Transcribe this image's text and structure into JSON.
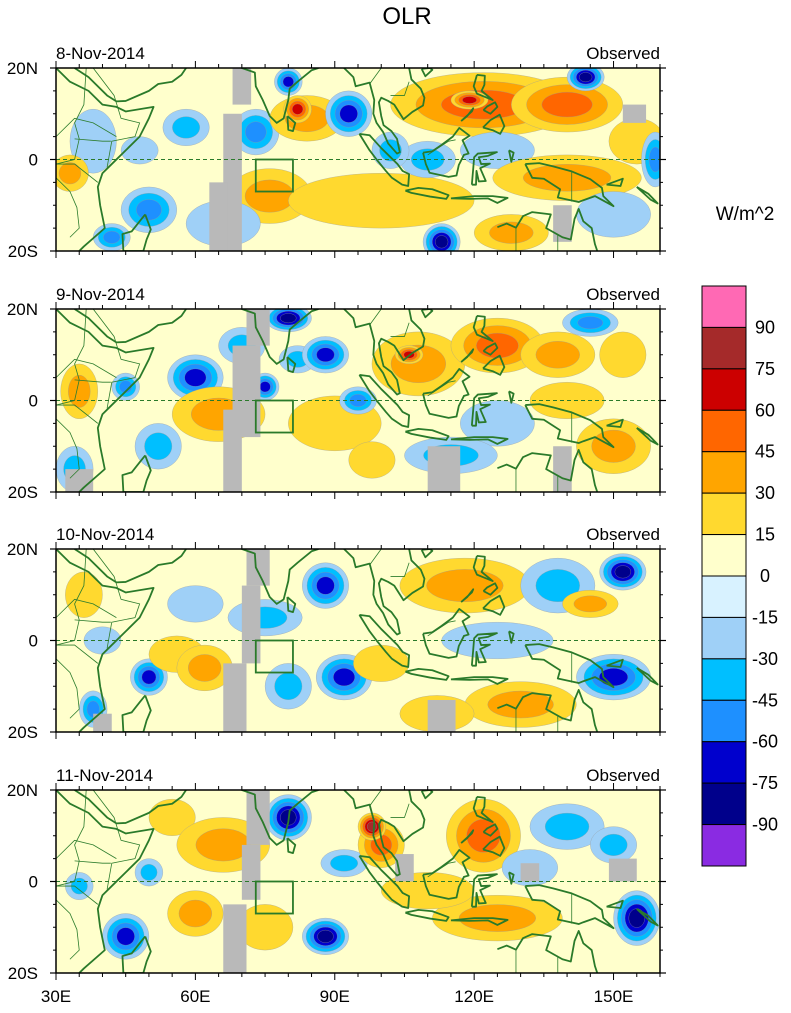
{
  "chart_data": {
    "type": "heatmap",
    "title": "OLR",
    "colorbar": {
      "unit_label": "W/m^2",
      "levels": [
        -90,
        -75,
        -60,
        -45,
        -30,
        -15,
        0,
        15,
        30,
        45,
        60,
        75,
        90
      ],
      "colors": [
        "#8a2be2",
        "#00008b",
        "#0000cd",
        "#1e90ff",
        "#00bfff",
        "#9fd0f7",
        "#d8f2ff",
        "#ffffcc",
        "#ffd92f",
        "#ffa500",
        "#ff6600",
        "#cc0000",
        "#a52a2a",
        "#ff69b4"
      ]
    },
    "x_axis": {
      "range": [
        30,
        160
      ],
      "ticks": [
        30,
        60,
        90,
        120,
        150
      ],
      "tick_labels": [
        "30E",
        "60E",
        "90E",
        "120E",
        "150E"
      ]
    },
    "y_axis": {
      "range": [
        -20,
        20
      ],
      "ticks": [
        20,
        0,
        -20
      ],
      "tick_labels": [
        "20N",
        "0",
        "20S"
      ]
    },
    "panels": [
      {
        "date": "8-Nov-2014",
        "label": "Observed",
        "anomalies": [
          {
            "lon": 38,
            "lat": 4,
            "rx": 5,
            "ry": 7,
            "v": -25
          },
          {
            "lon": 33,
            "lat": -3,
            "rx": 4,
            "ry": 4,
            "v": 35
          },
          {
            "lon": 50,
            "lat": -11,
            "rx": 6,
            "ry": 5,
            "v": -58
          },
          {
            "lon": 48,
            "lat": 2,
            "rx": 4,
            "ry": 3,
            "v": -20
          },
          {
            "lon": 58,
            "lat": 7,
            "rx": 5,
            "ry": 4,
            "v": -35
          },
          {
            "lon": 42,
            "lat": -17,
            "rx": 4,
            "ry": 3,
            "v": -55
          },
          {
            "lon": 73,
            "lat": 6,
            "rx": 5,
            "ry": 5,
            "v": -45
          },
          {
            "lon": 84,
            "lat": 9,
            "rx": 8,
            "ry": 5,
            "v": 42
          },
          {
            "lon": 82,
            "lat": 11,
            "rx": 3,
            "ry": 3,
            "v": 60
          },
          {
            "lon": 80,
            "lat": 17,
            "rx": 3,
            "ry": 3,
            "v": -70
          },
          {
            "lon": 93,
            "lat": 10,
            "rx": 5,
            "ry": 5,
            "v": -65
          },
          {
            "lon": 76,
            "lat": -8,
            "rx": 9,
            "ry": 6,
            "v": 30
          },
          {
            "lon": 100,
            "lat": -9,
            "rx": 20,
            "ry": 6,
            "v": 25
          },
          {
            "lon": 110,
            "lat": 0,
            "rx": 6,
            "ry": 4,
            "v": -40
          },
          {
            "lon": 102,
            "lat": 2,
            "rx": 4,
            "ry": 4,
            "v": -35
          },
          {
            "lon": 122,
            "lat": 12,
            "rx": 20,
            "ry": 7,
            "v": 48
          },
          {
            "lon": 119,
            "lat": 13,
            "rx": 4,
            "ry": 2,
            "v": 70
          },
          {
            "lon": 140,
            "lat": 12,
            "rx": 12,
            "ry": 6,
            "v": 45
          },
          {
            "lon": 144,
            "lat": 18,
            "rx": 4,
            "ry": 3,
            "v": -85
          },
          {
            "lon": 125,
            "lat": 2,
            "rx": 8,
            "ry": 4,
            "v": -25
          },
          {
            "lon": 140,
            "lat": -4,
            "rx": 16,
            "ry": 5,
            "v": 38
          },
          {
            "lon": 155,
            "lat": 4,
            "rx": 6,
            "ry": 5,
            "v": 20
          },
          {
            "lon": 159,
            "lat": 0,
            "rx": 3,
            "ry": 6,
            "v": -55
          },
          {
            "lon": 128,
            "lat": -16,
            "rx": 8,
            "ry": 4,
            "v": 32
          },
          {
            "lon": 113,
            "lat": -18,
            "rx": 4,
            "ry": 4,
            "v": -80
          },
          {
            "lon": 150,
            "lat": -12,
            "rx": 8,
            "ry": 5,
            "v": -20
          },
          {
            "lon": 66,
            "lat": -14,
            "rx": 8,
            "ry": 5,
            "v": -25
          }
        ],
        "missing": [
          [
            68,
            12,
            72,
            20
          ],
          [
            66,
            -20,
            70,
            10
          ],
          [
            63,
            -20,
            67,
            -5
          ],
          [
            152,
            8,
            157,
            12
          ],
          [
            137,
            -18,
            141,
            -10
          ]
        ]
      },
      {
        "date": "9-Nov-2014",
        "label": "Observed",
        "anomalies": [
          {
            "lon": 35,
            "lat": 2,
            "rx": 4,
            "ry": 6,
            "v": 30
          },
          {
            "lon": 45,
            "lat": 3,
            "rx": 3,
            "ry": 3,
            "v": -50
          },
          {
            "lon": 52,
            "lat": -10,
            "rx": 5,
            "ry": 5,
            "v": -40
          },
          {
            "lon": 34,
            "lat": -15,
            "rx": 4,
            "ry": 5,
            "v": -30
          },
          {
            "lon": 60,
            "lat": 5,
            "rx": 6,
            "ry": 5,
            "v": -60
          },
          {
            "lon": 70,
            "lat": 12,
            "rx": 5,
            "ry": 4,
            "v": -30
          },
          {
            "lon": 80,
            "lat": 18,
            "rx": 5,
            "ry": 3,
            "v": -75
          },
          {
            "lon": 82,
            "lat": 9,
            "rx": 4,
            "ry": 3,
            "v": -40
          },
          {
            "lon": 75,
            "lat": 3,
            "rx": 3,
            "ry": 3,
            "v": -70
          },
          {
            "lon": 88,
            "lat": 10,
            "rx": 5,
            "ry": 4,
            "v": -70
          },
          {
            "lon": 65,
            "lat": -3,
            "rx": 10,
            "ry": 6,
            "v": 35
          },
          {
            "lon": 90,
            "lat": -5,
            "rx": 10,
            "ry": 6,
            "v": 25
          },
          {
            "lon": 108,
            "lat": 8,
            "rx": 10,
            "ry": 7,
            "v": 42
          },
          {
            "lon": 106,
            "lat": 10,
            "rx": 3,
            "ry": 2,
            "v": 65
          },
          {
            "lon": 125,
            "lat": 12,
            "rx": 10,
            "ry": 6,
            "v": 45
          },
          {
            "lon": 138,
            "lat": 10,
            "rx": 8,
            "ry": 5,
            "v": 35
          },
          {
            "lon": 145,
            "lat": 17,
            "rx": 6,
            "ry": 3,
            "v": -45
          },
          {
            "lon": 152,
            "lat": 10,
            "rx": 5,
            "ry": 5,
            "v": 25
          },
          {
            "lon": 140,
            "lat": 0,
            "rx": 8,
            "ry": 4,
            "v": 25
          },
          {
            "lon": 125,
            "lat": -5,
            "rx": 8,
            "ry": 5,
            "v": -25
          },
          {
            "lon": 115,
            "lat": -12,
            "rx": 10,
            "ry": 4,
            "v": -30
          },
          {
            "lon": 150,
            "lat": -10,
            "rx": 8,
            "ry": 6,
            "v": 30
          },
          {
            "lon": 95,
            "lat": 0,
            "rx": 4,
            "ry": 3,
            "v": -45
          },
          {
            "lon": 98,
            "lat": -13,
            "rx": 5,
            "ry": 4,
            "v": 25
          }
        ],
        "missing": [
          [
            71,
            12,
            76,
            20
          ],
          [
            68,
            -8,
            74,
            12
          ],
          [
            66,
            -20,
            70,
            -2
          ],
          [
            110,
            -20,
            117,
            -10
          ],
          [
            137,
            -20,
            141,
            -10
          ],
          [
            32,
            -20,
            38,
            -15
          ]
        ]
      },
      {
        "date": "10-Nov-2014",
        "label": "Observed",
        "anomalies": [
          {
            "lon": 36,
            "lat": 10,
            "rx": 4,
            "ry": 5,
            "v": 25
          },
          {
            "lon": 40,
            "lat": 0,
            "rx": 4,
            "ry": 3,
            "v": -20
          },
          {
            "lon": 50,
            "lat": -8,
            "rx": 4,
            "ry": 4,
            "v": -70
          },
          {
            "lon": 38,
            "lat": -15,
            "rx": 3,
            "ry": 4,
            "v": -55
          },
          {
            "lon": 56,
            "lat": -3,
            "rx": 6,
            "ry": 4,
            "v": 25
          },
          {
            "lon": 62,
            "lat": -6,
            "rx": 6,
            "ry": 5,
            "v": 38
          },
          {
            "lon": 60,
            "lat": 8,
            "rx": 6,
            "ry": 4,
            "v": -25
          },
          {
            "lon": 75,
            "lat": 5,
            "rx": 8,
            "ry": 4,
            "v": -30
          },
          {
            "lon": 88,
            "lat": 12,
            "rx": 5,
            "ry": 5,
            "v": -70
          },
          {
            "lon": 92,
            "lat": -8,
            "rx": 6,
            "ry": 5,
            "v": -60
          },
          {
            "lon": 80,
            "lat": -10,
            "rx": 5,
            "ry": 5,
            "v": -30
          },
          {
            "lon": 100,
            "lat": -5,
            "rx": 6,
            "ry": 4,
            "v": 20
          },
          {
            "lon": 118,
            "lat": 12,
            "rx": 14,
            "ry": 6,
            "v": 40
          },
          {
            "lon": 138,
            "lat": 12,
            "rx": 8,
            "ry": 6,
            "v": -35
          },
          {
            "lon": 152,
            "lat": 15,
            "rx": 5,
            "ry": 4,
            "v": -75
          },
          {
            "lon": 145,
            "lat": 8,
            "rx": 6,
            "ry": 3,
            "v": 35
          },
          {
            "lon": 125,
            "lat": 0,
            "rx": 12,
            "ry": 4,
            "v": -25
          },
          {
            "lon": 150,
            "lat": -8,
            "rx": 8,
            "ry": 5,
            "v": -70
          },
          {
            "lon": 130,
            "lat": -14,
            "rx": 12,
            "ry": 5,
            "v": 30
          },
          {
            "lon": 112,
            "lat": -16,
            "rx": 8,
            "ry": 4,
            "v": 25
          }
        ],
        "missing": [
          [
            71,
            12,
            76,
            20
          ],
          [
            70,
            -5,
            74,
            12
          ],
          [
            66,
            -20,
            71,
            -5
          ],
          [
            38,
            -20,
            42,
            -16
          ],
          [
            110,
            -20,
            116,
            -13
          ]
        ]
      },
      {
        "date": "11-Nov-2014",
        "label": "Observed",
        "anomalies": [
          {
            "lon": 35,
            "lat": -1,
            "rx": 3,
            "ry": 3,
            "v": -40
          },
          {
            "lon": 45,
            "lat": -12,
            "rx": 5,
            "ry": 5,
            "v": -60
          },
          {
            "lon": 50,
            "lat": 2,
            "rx": 3,
            "ry": 3,
            "v": -35
          },
          {
            "lon": 55,
            "lat": 14,
            "rx": 5,
            "ry": 4,
            "v": 25
          },
          {
            "lon": 60,
            "lat": -7,
            "rx": 6,
            "ry": 5,
            "v": 35
          },
          {
            "lon": 66,
            "lat": 8,
            "rx": 10,
            "ry": 6,
            "v": 30
          },
          {
            "lon": 80,
            "lat": 14,
            "rx": 5,
            "ry": 5,
            "v": -80
          },
          {
            "lon": 88,
            "lat": -12,
            "rx": 5,
            "ry": 4,
            "v": -75
          },
          {
            "lon": 92,
            "lat": 4,
            "rx": 5,
            "ry": 3,
            "v": -40
          },
          {
            "lon": 100,
            "lat": 8,
            "rx": 5,
            "ry": 5,
            "v": 48
          },
          {
            "lon": 98,
            "lat": 12,
            "rx": 3,
            "ry": 3,
            "v": 80
          },
          {
            "lon": 122,
            "lat": 10,
            "rx": 8,
            "ry": 8,
            "v": 50
          },
          {
            "lon": 140,
            "lat": 12,
            "rx": 8,
            "ry": 5,
            "v": -40
          },
          {
            "lon": 150,
            "lat": 8,
            "rx": 5,
            "ry": 4,
            "v": -30
          },
          {
            "lon": 155,
            "lat": -8,
            "rx": 5,
            "ry": 6,
            "v": -75
          },
          {
            "lon": 125,
            "lat": -8,
            "rx": 14,
            "ry": 5,
            "v": 35
          },
          {
            "lon": 110,
            "lat": -2,
            "rx": 10,
            "ry": 4,
            "v": 25
          },
          {
            "lon": 132,
            "lat": 3,
            "rx": 6,
            "ry": 4,
            "v": -25
          },
          {
            "lon": 75,
            "lat": -10,
            "rx": 6,
            "ry": 5,
            "v": 25
          }
        ],
        "missing": [
          [
            71,
            8,
            76,
            20
          ],
          [
            70,
            -4,
            74,
            8
          ],
          [
            66,
            -20,
            71,
            -5
          ],
          [
            103,
            0,
            107,
            6
          ],
          [
            130,
            0,
            134,
            4
          ],
          [
            149,
            0,
            155,
            5
          ]
        ]
      }
    ]
  }
}
